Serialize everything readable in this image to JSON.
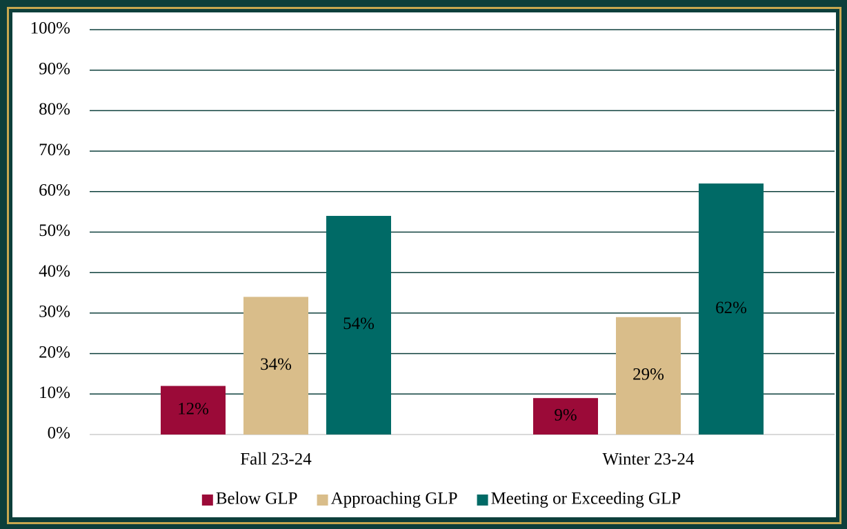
{
  "chart_data": {
    "type": "bar",
    "categories": [
      "Fall 23-24",
      "Winter 23-24"
    ],
    "series": [
      {
        "name": "Below GLP",
        "color": "#9b0a38",
        "values": [
          12,
          9
        ],
        "value_labels": [
          "12%",
          "9%"
        ]
      },
      {
        "name": "Approaching GLP",
        "color": "#d9bd8a",
        "values": [
          34,
          29
        ],
        "value_labels": [
          "34%",
          "29%"
        ]
      },
      {
        "name": "Meeting or Exceeding GLP",
        "color": "#006a66",
        "values": [
          54,
          62
        ],
        "value_labels": [
          "54%",
          "62%"
        ]
      }
    ],
    "ylim": [
      0,
      100
    ],
    "yticks": [
      {
        "value": 0,
        "label": "0%"
      },
      {
        "value": 10,
        "label": "10%"
      },
      {
        "value": 20,
        "label": "20%"
      },
      {
        "value": 30,
        "label": "30%"
      },
      {
        "value": 40,
        "label": "40%"
      },
      {
        "value": 50,
        "label": "50%"
      },
      {
        "value": 60,
        "label": "60%"
      },
      {
        "value": 70,
        "label": "70%"
      },
      {
        "value": 80,
        "label": "80%"
      },
      {
        "value": 90,
        "label": "90%"
      },
      {
        "value": 100,
        "label": "100%"
      }
    ],
    "grid": true,
    "legend": "bottom"
  }
}
